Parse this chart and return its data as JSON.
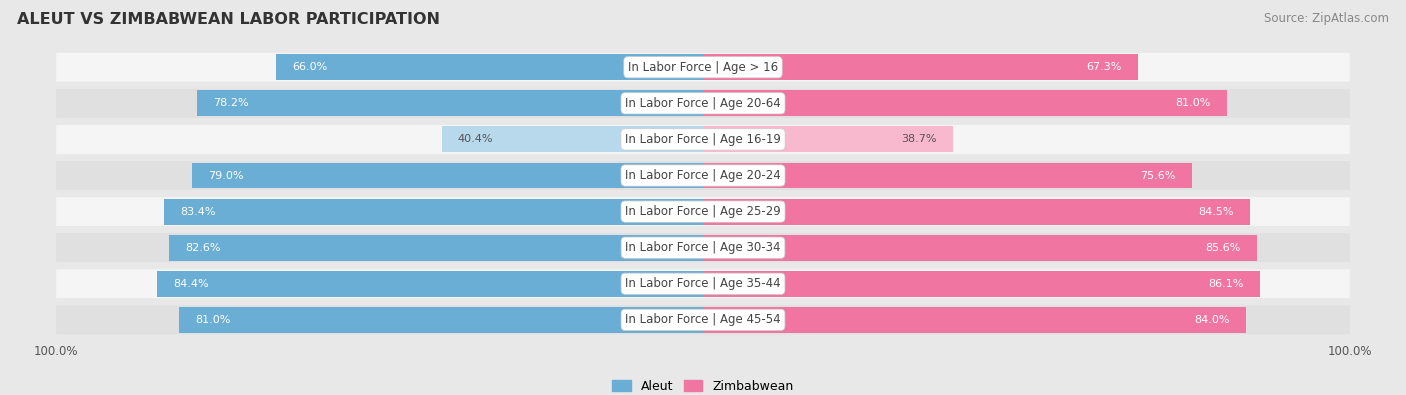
{
  "title": "ALEUT VS ZIMBABWEAN LABOR PARTICIPATION",
  "source": "Source: ZipAtlas.com",
  "categories": [
    "In Labor Force | Age > 16",
    "In Labor Force | Age 20-64",
    "In Labor Force | Age 16-19",
    "In Labor Force | Age 20-24",
    "In Labor Force | Age 25-29",
    "In Labor Force | Age 30-34",
    "In Labor Force | Age 35-44",
    "In Labor Force | Age 45-54"
  ],
  "aleut_values": [
    66.0,
    78.2,
    40.4,
    79.0,
    83.4,
    82.6,
    84.4,
    81.0
  ],
  "zimbabwean_values": [
    67.3,
    81.0,
    38.7,
    75.6,
    84.5,
    85.6,
    86.1,
    84.0
  ],
  "aleut_color": "#6aaed6",
  "aleut_color_light": "#b8d8ec",
  "zimbabwean_color": "#f075a0",
  "zimbabwean_color_light": "#f8b8ce",
  "bg_color": "#e8e8e8",
  "row_bg_white": "#f5f5f5",
  "row_bg_gray": "#e0e0e0",
  "max_value": 100.0,
  "legend_aleut": "Aleut",
  "legend_zimbabwean": "Zimbabwean",
  "low_threshold": 60.0
}
